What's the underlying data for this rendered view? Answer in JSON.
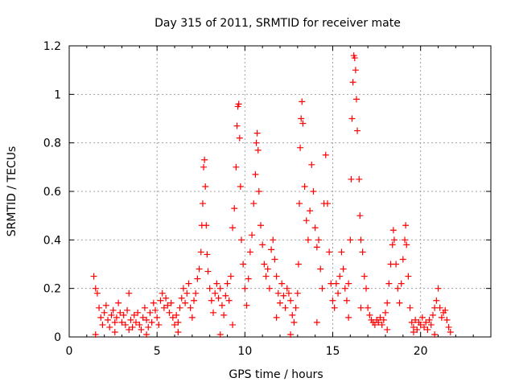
{
  "chart_data": {
    "type": "scatter",
    "title": "Day 315 of 2011, SRMTID for receiver mate",
    "xlabel": "GPS time / hours",
    "ylabel": "SRMTID / TECUs",
    "xlim": [
      0,
      24
    ],
    "ylim": [
      0,
      1.2
    ],
    "xticks": [
      0,
      5,
      10,
      15,
      20
    ],
    "yticks": [
      0,
      0.2,
      0.4,
      0.6,
      0.8,
      1,
      1.2
    ],
    "ytick_labels": [
      "0",
      "0.2",
      "0.4",
      "0.6",
      "0.8",
      "1",
      "1.2"
    ],
    "grid": true,
    "marker": "+",
    "color": "#ff0000",
    "series": [
      {
        "name": "SRMTID",
        "points": [
          [
            1.4,
            0.25
          ],
          [
            1.5,
            0.2
          ],
          [
            1.6,
            0.18
          ],
          [
            1.7,
            0.12
          ],
          [
            1.8,
            0.08
          ],
          [
            1.9,
            0.05
          ],
          [
            2.0,
            0.1
          ],
          [
            2.1,
            0.13
          ],
          [
            2.2,
            0.07
          ],
          [
            2.3,
            0.04
          ],
          [
            2.4,
            0.09
          ],
          [
            2.5,
            0.11
          ],
          [
            2.6,
            0.06
          ],
          [
            2.7,
            0.08
          ],
          [
            2.8,
            0.14
          ],
          [
            2.9,
            0.1
          ],
          [
            3.0,
            0.06
          ],
          [
            3.1,
            0.09
          ],
          [
            3.2,
            0.05
          ],
          [
            3.3,
            0.11
          ],
          [
            3.4,
            0.18
          ],
          [
            3.5,
            0.07
          ],
          [
            3.6,
            0.04
          ],
          [
            3.7,
            0.09
          ],
          [
            3.8,
            0.06
          ],
          [
            3.9,
            0.1
          ],
          [
            4.0,
            0.05
          ],
          [
            4.1,
            0.03
          ],
          [
            4.2,
            0.08
          ],
          [
            4.3,
            0.12
          ],
          [
            4.4,
            0.07
          ],
          [
            4.5,
            0.04
          ],
          [
            4.6,
            0.1
          ],
          [
            4.7,
            0.06
          ],
          [
            4.8,
            0.14
          ],
          [
            4.9,
            0.11
          ],
          [
            5.0,
            0.08
          ],
          [
            5.1,
            0.05
          ],
          [
            5.2,
            0.15
          ],
          [
            5.3,
            0.18
          ],
          [
            5.4,
            0.12
          ],
          [
            5.5,
            0.16
          ],
          [
            5.6,
            0.13
          ],
          [
            5.7,
            0.1
          ],
          [
            5.8,
            0.14
          ],
          [
            5.9,
            0.08
          ],
          [
            6.0,
            0.05
          ],
          [
            6.1,
            0.09
          ],
          [
            6.2,
            0.06
          ],
          [
            6.3,
            0.12
          ],
          [
            6.4,
            0.16
          ],
          [
            6.5,
            0.2
          ],
          [
            6.6,
            0.14
          ],
          [
            6.7,
            0.18
          ],
          [
            6.8,
            0.22
          ],
          [
            6.9,
            0.12
          ],
          [
            7.0,
            0.08
          ],
          [
            7.1,
            0.15
          ],
          [
            7.2,
            0.18
          ],
          [
            7.3,
            0.24
          ],
          [
            7.4,
            0.28
          ],
          [
            7.5,
            0.35
          ],
          [
            7.55,
            0.46
          ],
          [
            7.6,
            0.55
          ],
          [
            7.65,
            0.7
          ],
          [
            7.7,
            0.73
          ],
          [
            7.75,
            0.62
          ],
          [
            7.8,
            0.46
          ],
          [
            7.85,
            0.34
          ],
          [
            7.9,
            0.27
          ],
          [
            8.0,
            0.2
          ],
          [
            8.1,
            0.15
          ],
          [
            8.2,
            0.1
          ],
          [
            8.3,
            0.18
          ],
          [
            8.4,
            0.22
          ],
          [
            8.5,
            0.16
          ],
          [
            8.6,
            0.2
          ],
          [
            8.7,
            0.13
          ],
          [
            8.8,
            0.09
          ],
          [
            8.9,
            0.17
          ],
          [
            9.0,
            0.22
          ],
          [
            9.1,
            0.15
          ],
          [
            9.2,
            0.25
          ],
          [
            9.3,
            0.45
          ],
          [
            9.4,
            0.53
          ],
          [
            9.5,
            0.7
          ],
          [
            9.55,
            0.87
          ],
          [
            9.6,
            0.95
          ],
          [
            9.65,
            0.96
          ],
          [
            9.7,
            0.82
          ],
          [
            9.75,
            0.62
          ],
          [
            9.8,
            0.4
          ],
          [
            9.9,
            0.3
          ],
          [
            10.0,
            0.2
          ],
          [
            10.1,
            0.13
          ],
          [
            10.2,
            0.24
          ],
          [
            10.3,
            0.35
          ],
          [
            10.4,
            0.42
          ],
          [
            10.5,
            0.55
          ],
          [
            10.6,
            0.67
          ],
          [
            10.65,
            0.8
          ],
          [
            10.7,
            0.84
          ],
          [
            10.75,
            0.77
          ],
          [
            10.8,
            0.6
          ],
          [
            10.9,
            0.46
          ],
          [
            11.0,
            0.38
          ],
          [
            11.1,
            0.3
          ],
          [
            11.2,
            0.25
          ],
          [
            11.3,
            0.28
          ],
          [
            11.4,
            0.2
          ],
          [
            11.5,
            0.36
          ],
          [
            11.6,
            0.4
          ],
          [
            11.7,
            0.32
          ],
          [
            11.8,
            0.25
          ],
          [
            11.9,
            0.18
          ],
          [
            12.0,
            0.14
          ],
          [
            12.1,
            0.22
          ],
          [
            12.2,
            0.17
          ],
          [
            12.3,
            0.12
          ],
          [
            12.4,
            0.2
          ],
          [
            12.5,
            0.18
          ],
          [
            12.6,
            0.15
          ],
          [
            12.7,
            0.09
          ],
          [
            12.8,
            0.06
          ],
          [
            12.9,
            0.12
          ],
          [
            13.0,
            0.18
          ],
          [
            13.05,
            0.3
          ],
          [
            13.1,
            0.55
          ],
          [
            13.15,
            0.78
          ],
          [
            13.2,
            0.9
          ],
          [
            13.25,
            0.97
          ],
          [
            13.3,
            0.88
          ],
          [
            13.4,
            0.62
          ],
          [
            13.5,
            0.48
          ],
          [
            13.6,
            0.4
          ],
          [
            13.7,
            0.52
          ],
          [
            13.8,
            0.71
          ],
          [
            13.9,
            0.6
          ],
          [
            14.0,
            0.45
          ],
          [
            14.1,
            0.37
          ],
          [
            14.2,
            0.4
          ],
          [
            14.3,
            0.28
          ],
          [
            14.4,
            0.2
          ],
          [
            14.5,
            0.55
          ],
          [
            14.6,
            0.75
          ],
          [
            14.7,
            0.55
          ],
          [
            14.8,
            0.35
          ],
          [
            14.9,
            0.22
          ],
          [
            15.0,
            0.15
          ],
          [
            15.1,
            0.12
          ],
          [
            15.2,
            0.22
          ],
          [
            15.3,
            0.18
          ],
          [
            15.4,
            0.25
          ],
          [
            15.5,
            0.35
          ],
          [
            15.6,
            0.28
          ],
          [
            15.7,
            0.2
          ],
          [
            15.8,
            0.15
          ],
          [
            15.9,
            0.22
          ],
          [
            16.0,
            0.4
          ],
          [
            16.05,
            0.65
          ],
          [
            16.1,
            0.9
          ],
          [
            16.15,
            1.05
          ],
          [
            16.2,
            1.16
          ],
          [
            16.25,
            1.15
          ],
          [
            16.3,
            1.1
          ],
          [
            16.35,
            0.98
          ],
          [
            16.4,
            0.85
          ],
          [
            16.5,
            0.65
          ],
          [
            16.55,
            0.5
          ],
          [
            16.6,
            0.4
          ],
          [
            16.7,
            0.35
          ],
          [
            16.8,
            0.25
          ],
          [
            16.9,
            0.2
          ],
          [
            17.0,
            0.12
          ],
          [
            17.1,
            0.09
          ],
          [
            17.2,
            0.07
          ],
          [
            17.3,
            0.06
          ],
          [
            17.4,
            0.05
          ],
          [
            17.5,
            0.07
          ],
          [
            17.6,
            0.06
          ],
          [
            17.7,
            0.08
          ],
          [
            17.8,
            0.05
          ],
          [
            17.9,
            0.07
          ],
          [
            18.0,
            0.1
          ],
          [
            18.1,
            0.14
          ],
          [
            18.2,
            0.22
          ],
          [
            18.3,
            0.3
          ],
          [
            18.4,
            0.38
          ],
          [
            18.45,
            0.44
          ],
          [
            18.5,
            0.4
          ],
          [
            18.6,
            0.3
          ],
          [
            18.7,
            0.2
          ],
          [
            18.8,
            0.14
          ],
          [
            18.9,
            0.22
          ],
          [
            19.0,
            0.32
          ],
          [
            19.1,
            0.4
          ],
          [
            19.15,
            0.46
          ],
          [
            19.2,
            0.38
          ],
          [
            19.3,
            0.25
          ],
          [
            19.4,
            0.12
          ],
          [
            19.5,
            0.06
          ],
          [
            19.6,
            0.04
          ],
          [
            19.7,
            0.07
          ],
          [
            19.8,
            0.03
          ],
          [
            19.9,
            0.06
          ],
          [
            20.0,
            0.05
          ],
          [
            20.1,
            0.08
          ],
          [
            20.2,
            0.04
          ],
          [
            20.3,
            0.06
          ],
          [
            20.4,
            0.03
          ],
          [
            20.5,
            0.07
          ],
          [
            20.6,
            0.05
          ],
          [
            20.7,
            0.09
          ],
          [
            20.8,
            0.12
          ],
          [
            20.9,
            0.15
          ],
          [
            21.0,
            0.2
          ],
          [
            21.1,
            0.12
          ],
          [
            21.2,
            0.08
          ],
          [
            21.3,
            0.1
          ],
          [
            21.4,
            0.11
          ],
          [
            21.5,
            0.07
          ],
          [
            21.6,
            0.04
          ],
          [
            21.7,
            0.02
          ],
          [
            1.5,
            0.01
          ],
          [
            2.6,
            0.02
          ],
          [
            3.4,
            0.03
          ],
          [
            4.4,
            0.01
          ],
          [
            6.2,
            0.02
          ],
          [
            8.6,
            0.01
          ],
          [
            9.3,
            0.05
          ],
          [
            11.8,
            0.08
          ],
          [
            12.6,
            0.01
          ],
          [
            14.1,
            0.06
          ],
          [
            15.9,
            0.08
          ],
          [
            16.6,
            0.12
          ],
          [
            18.1,
            0.03
          ],
          [
            19.6,
            0.02
          ],
          [
            20.8,
            0.01
          ]
        ]
      }
    ]
  }
}
